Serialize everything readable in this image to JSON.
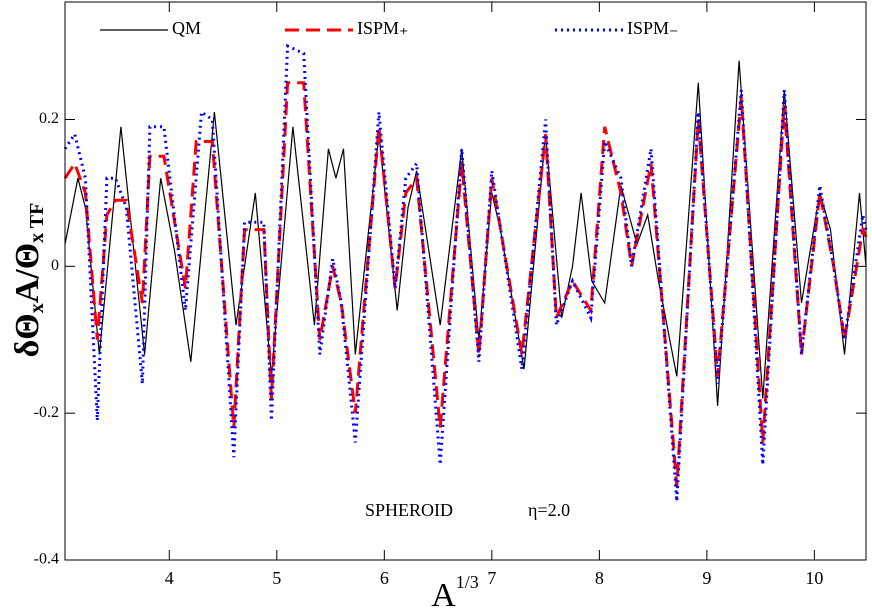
{
  "chart_data": {
    "type": "line",
    "x_label": [
      "A",
      "1/3"
    ],
    "y_label": [
      "δΘ",
      "x",
      "A/Θ",
      "x TF"
    ],
    "annotations": [
      "SPHEROID",
      "η=2.0"
    ],
    "xlim": [
      3.03,
      10.48
    ],
    "ylim": [
      -0.4,
      0.36
    ],
    "xticks": [
      4,
      5,
      6,
      7,
      8,
      9,
      10
    ],
    "yticks": [
      -0.4,
      -0.2,
      0,
      0.2
    ],
    "legend": "top",
    "series": [
      {
        "name": "QM",
        "color": "#000000",
        "dash": "solid",
        "x": [
          3.03,
          3.15,
          3.22,
          3.35,
          3.55,
          3.77,
          3.92,
          4.05,
          4.2,
          4.42,
          4.62,
          4.8,
          4.95,
          5.15,
          5.35,
          5.48,
          5.55,
          5.62,
          5.73,
          5.95,
          6.12,
          6.22,
          6.3,
          6.52,
          6.72,
          6.88,
          7.0,
          7.08,
          7.3,
          7.5,
          7.65,
          7.75,
          7.83,
          7.93,
          8.05,
          8.2,
          8.35,
          8.45,
          8.55,
          8.72,
          8.92,
          9.1,
          9.3,
          9.52,
          9.72,
          9.88,
          10.05,
          10.15,
          10.28,
          10.42,
          10.48
        ],
        "values": [
          0.03,
          0.12,
          0.08,
          -0.12,
          0.19,
          -0.12,
          0.12,
          0.02,
          -0.13,
          0.21,
          -0.08,
          0.1,
          -0.15,
          0.19,
          -0.08,
          0.16,
          0.12,
          0.16,
          -0.12,
          0.18,
          -0.06,
          0.08,
          0.13,
          -0.08,
          0.16,
          -0.1,
          0.1,
          0.05,
          -0.14,
          0.18,
          -0.07,
          0.0,
          0.1,
          -0.02,
          -0.05,
          0.11,
          0.03,
          0.07,
          -0.02,
          -0.15,
          0.25,
          -0.19,
          0.28,
          -0.18,
          0.24,
          -0.05,
          0.1,
          0.05,
          -0.12,
          0.1,
          0.0
        ]
      },
      {
        "name": "ISPM₊",
        "color": "#ff0000",
        "dash": "dashed",
        "x": [
          3.03,
          3.12,
          3.22,
          3.33,
          3.42,
          3.5,
          3.6,
          3.75,
          3.82,
          3.95,
          4.15,
          4.25,
          4.4,
          4.6,
          4.7,
          4.88,
          4.95,
          5.1,
          5.25,
          5.4,
          5.52,
          5.6,
          5.73,
          5.95,
          6.1,
          6.2,
          6.3,
          6.52,
          6.72,
          6.88,
          7.0,
          7.28,
          7.5,
          7.6,
          7.75,
          7.92,
          8.05,
          8.2,
          8.3,
          8.48,
          8.72,
          8.92,
          9.1,
          9.32,
          9.52,
          9.72,
          9.88,
          10.05,
          10.18,
          10.28,
          10.45,
          10.48
        ],
        "values": [
          0.12,
          0.14,
          0.1,
          -0.1,
          0.07,
          0.09,
          0.09,
          -0.05,
          0.15,
          0.15,
          -0.03,
          0.17,
          0.17,
          -0.22,
          0.05,
          0.05,
          -0.18,
          0.25,
          0.25,
          -0.1,
          0.0,
          -0.05,
          -0.2,
          0.19,
          -0.03,
          0.1,
          0.12,
          -0.22,
          0.14,
          -0.12,
          0.12,
          -0.12,
          0.18,
          -0.07,
          -0.02,
          -0.06,
          0.19,
          0.1,
          0.0,
          0.14,
          -0.3,
          0.2,
          -0.15,
          0.23,
          -0.24,
          0.22,
          -0.12,
          0.1,
          0.0,
          -0.1,
          0.05,
          0.04
        ]
      },
      {
        "name": "ISPM₋",
        "color": "#0000ff",
        "dash": "dotted",
        "x": [
          3.03,
          3.12,
          3.22,
          3.33,
          3.42,
          3.5,
          3.6,
          3.75,
          3.82,
          3.95,
          4.15,
          4.3,
          4.4,
          4.6,
          4.7,
          4.88,
          4.95,
          5.1,
          5.25,
          5.4,
          5.52,
          5.6,
          5.73,
          5.95,
          6.1,
          6.2,
          6.3,
          6.52,
          6.72,
          6.88,
          7.0,
          7.28,
          7.5,
          7.6,
          7.75,
          7.92,
          8.05,
          8.2,
          8.3,
          8.48,
          8.72,
          8.92,
          9.1,
          9.32,
          9.52,
          9.72,
          9.88,
          10.05,
          10.18,
          10.28,
          10.45,
          10.48
        ],
        "values": [
          0.16,
          0.18,
          0.12,
          -0.21,
          0.12,
          0.12,
          0.08,
          -0.16,
          0.19,
          0.19,
          -0.06,
          0.21,
          0.2,
          -0.26,
          0.06,
          0.06,
          -0.21,
          0.3,
          0.29,
          -0.12,
          0.01,
          -0.05,
          -0.24,
          0.21,
          -0.03,
          0.12,
          0.14,
          -0.27,
          0.16,
          -0.13,
          0.13,
          -0.14,
          0.2,
          -0.08,
          -0.02,
          -0.07,
          0.17,
          0.12,
          0.0,
          0.16,
          -0.32,
          0.21,
          -0.16,
          0.24,
          -0.27,
          0.24,
          -0.12,
          0.11,
          0.0,
          -0.1,
          0.07,
          0.05
        ]
      }
    ]
  }
}
